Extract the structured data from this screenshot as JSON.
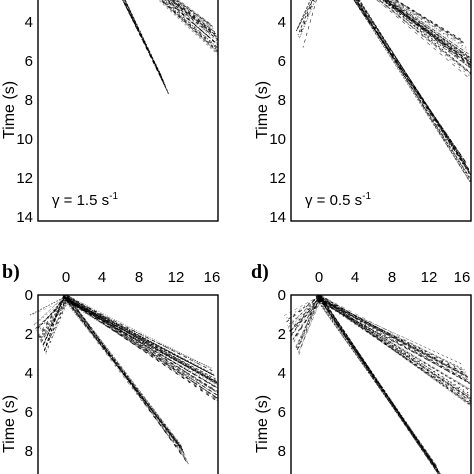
{
  "figure": {
    "panels": [
      {
        "id": "a",
        "letter": "",
        "gamma_label": "γ = 1.5 s",
        "gamma_exp": "-1",
        "time_ticks": [
          "4",
          "6",
          "8",
          "10",
          "12",
          "14"
        ],
        "offset_ticks": []
      },
      {
        "id": "c",
        "letter": "",
        "gamma_label": "γ = 0.5 s",
        "gamma_exp": "-1",
        "time_ticks": [
          "4",
          "6",
          "8",
          "10",
          "12",
          "14"
        ],
        "offset_ticks": []
      },
      {
        "id": "b",
        "letter": "b)",
        "gamma_label": "",
        "gamma_exp": "",
        "time_ticks": [
          "0",
          "2",
          "4",
          "6",
          "8"
        ],
        "offset_ticks": [
          "0",
          "4",
          "8",
          "12",
          "16"
        ]
      },
      {
        "id": "d",
        "letter": "d)",
        "gamma_label": "",
        "gamma_exp": "",
        "time_ticks": [
          "0",
          "2",
          "4",
          "6",
          "8"
        ],
        "offset_ticks": [
          "0",
          "4",
          "8",
          "12",
          "16"
        ]
      }
    ],
    "time_axis_label": "Time (s)",
    "ink_color": "#000000"
  }
}
